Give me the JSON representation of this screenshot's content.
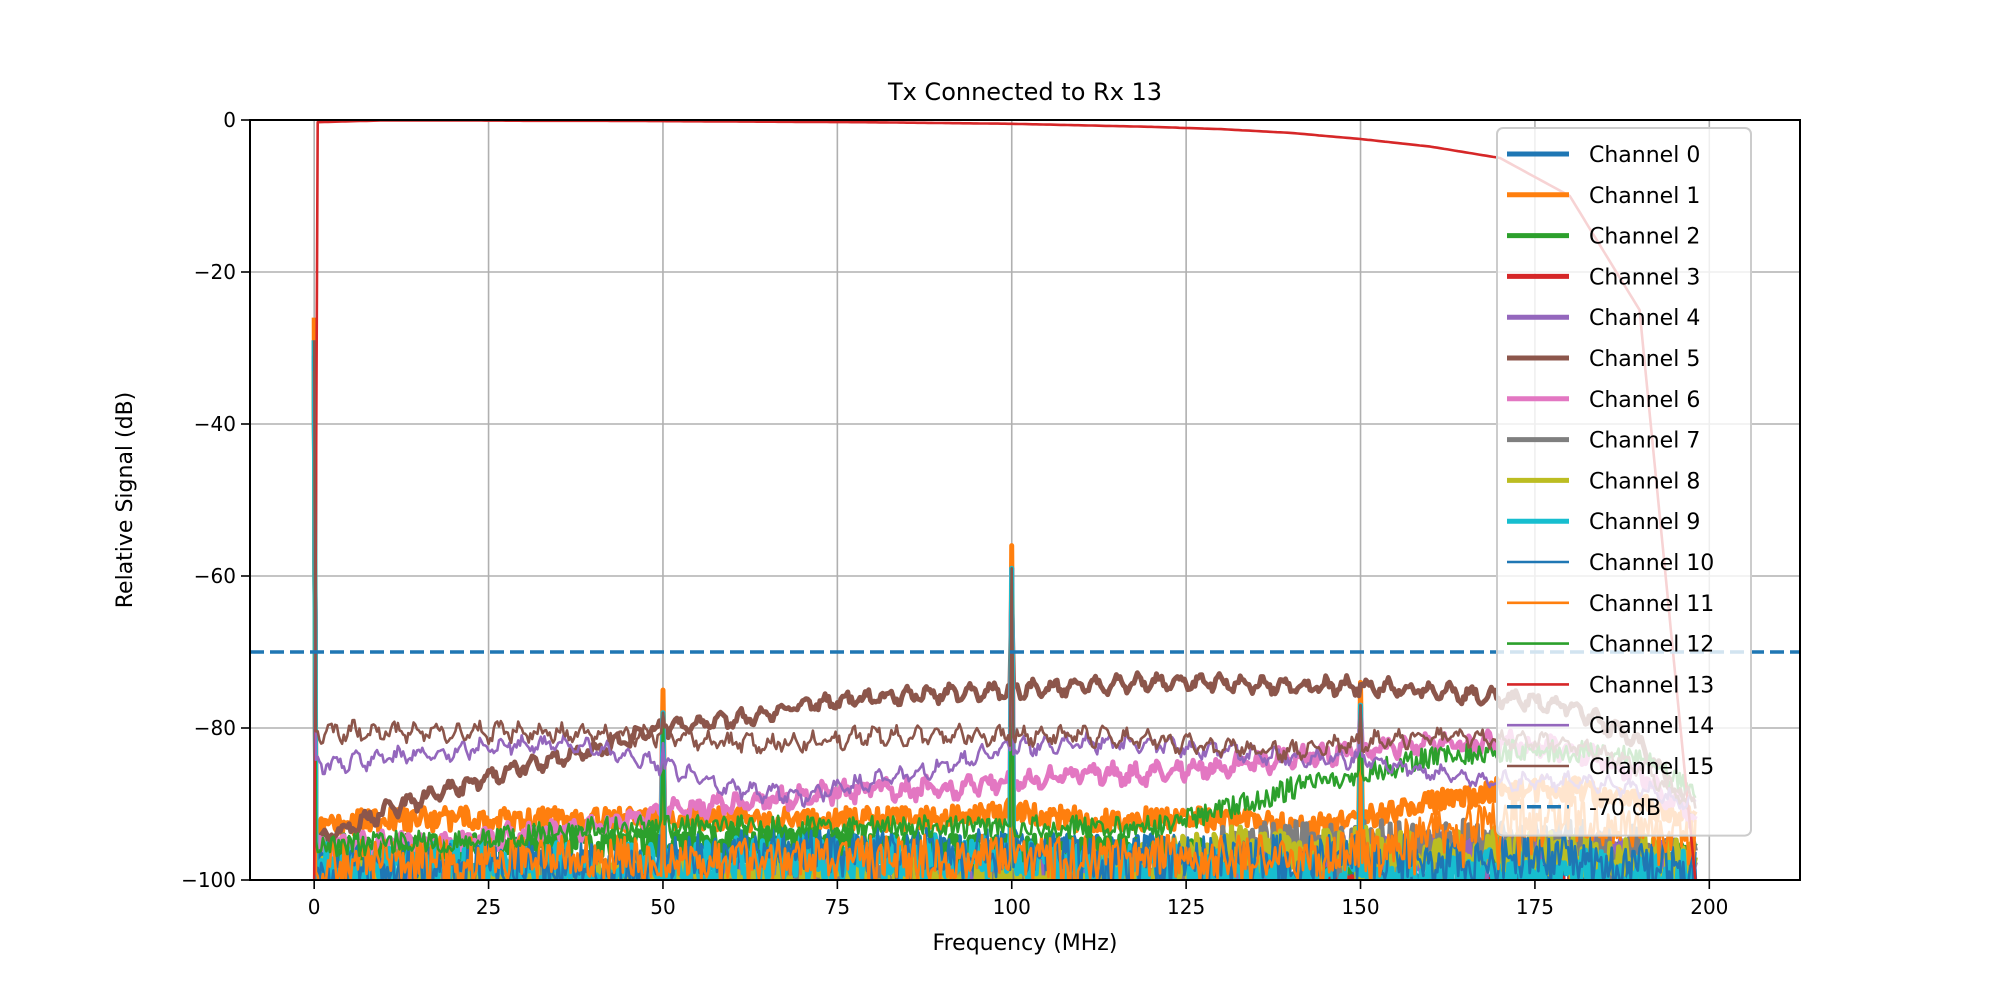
{
  "chart_data": {
    "type": "line",
    "title": "Tx Connected to Rx 13",
    "xlabel": "Frequency (MHz)",
    "ylabel": "Relative Signal (dB)",
    "xlim": [
      -9.2,
      213
    ],
    "ylim": [
      -100,
      0
    ],
    "xticks": [
      0,
      25,
      50,
      75,
      100,
      125,
      150,
      175,
      200
    ],
    "yticks": [
      0,
      -20,
      -40,
      -60,
      -80,
      -100
    ],
    "xtick_labels": [
      "0",
      "25",
      "50",
      "75",
      "100",
      "125",
      "150",
      "175",
      "200"
    ],
    "ytick_labels": [
      "0",
      "−20",
      "−40",
      "−60",
      "−80",
      "−100"
    ],
    "grid": true,
    "legend_position": "upper right",
    "x": [
      0,
      10,
      20,
      30,
      40,
      50,
      60,
      70,
      80,
      90,
      100,
      110,
      120,
      130,
      140,
      150,
      160,
      170,
      180,
      190,
      198
    ],
    "spikes": [
      {
        "x": 0,
        "db": -26
      },
      {
        "x": 50,
        "db": -75
      },
      {
        "x": 100,
        "db": -56
      },
      {
        "x": 150,
        "db": -74
      }
    ],
    "series": [
      {
        "name": "Channel 0",
        "color": "#1f77b4",
        "width": "thick",
        "noise": 3,
        "values": [
          -99,
          -99,
          -99,
          -99,
          -99,
          -99,
          -97,
          -97,
          -97,
          -97,
          -97,
          -97,
          -97,
          -99,
          -99,
          -99,
          -99,
          -99,
          -99,
          -99,
          -99
        ]
      },
      {
        "name": "Channel 1",
        "color": "#ff7f0e",
        "width": "thick",
        "noise": 1.6,
        "values": [
          -93,
          -92,
          -92,
          -92,
          -92,
          -92,
          -92,
          -92,
          -92,
          -92,
          -91,
          -92,
          -92,
          -92,
          -93,
          -92,
          -90,
          -88,
          -88,
          -90,
          -92
        ]
      },
      {
        "name": "Channel 2",
        "color": "#2ca02c",
        "width": "thick",
        "noise": 2,
        "values": [
          -96,
          -96,
          -96,
          -95,
          -95,
          -95,
          -95,
          -95,
          -95,
          -96,
          -96,
          -96,
          -96,
          -97,
          -97,
          -97,
          -97,
          -97,
          -97,
          -97,
          -97
        ]
      },
      {
        "name": "Channel 3",
        "color": "#d62728",
        "width": "thick",
        "noise": 1.5,
        "values": [
          -101,
          -101,
          -101,
          -101,
          -101,
          -101,
          -101,
          -101,
          -101,
          -101,
          -101,
          -101,
          -101,
          -101,
          -101,
          -101,
          -101,
          -101,
          -101,
          -101,
          -101
        ]
      },
      {
        "name": "Channel 4",
        "color": "#9467bd",
        "width": "thick",
        "noise": 2.5,
        "values": [
          -100,
          -100,
          -100,
          -100,
          -100,
          -100,
          -100,
          -100,
          -100,
          -100,
          -100,
          -100,
          -100,
          -99,
          -97,
          -96,
          -96,
          -96,
          -96,
          -97,
          -98
        ]
      },
      {
        "name": "Channel 5",
        "color": "#8c564b",
        "width": "thick",
        "noise": 0.6,
        "values": [
          -95,
          -91,
          -88,
          -85,
          -83,
          -80,
          -79,
          -77,
          -76,
          -75.5,
          -75,
          -74.5,
          -74,
          -74,
          -74.5,
          -74.5,
          -75,
          -76,
          -77,
          -82,
          -92
        ]
      },
      {
        "name": "Channel 6",
        "color": "#e377c2",
        "width": "thick",
        "noise": 1,
        "values": [
          -96,
          -95,
          -95,
          -94,
          -93,
          -91,
          -90,
          -89,
          -88,
          -88,
          -87,
          -86,
          -86,
          -85,
          -84,
          -83,
          -82,
          -82,
          -83,
          -86,
          -92
        ]
      },
      {
        "name": "Channel 7",
        "color": "#7f7f7f",
        "width": "thick",
        "noise": 3,
        "values": [
          -101,
          -101,
          -101,
          -101,
          -101,
          -101,
          -101,
          -101,
          -101,
          -101,
          -101,
          -101,
          -101,
          -96,
          -95,
          -95,
          -95,
          -95,
          -95,
          -96,
          -98
        ]
      },
      {
        "name": "Channel 8",
        "color": "#bcbd22",
        "width": "thick",
        "noise": 3,
        "values": [
          -100,
          -100,
          -100,
          -100,
          -100,
          -100,
          -100,
          -100,
          -100,
          -100,
          -100,
          -99,
          -98,
          -96,
          -96,
          -96,
          -96,
          -96,
          -97,
          -97,
          -98
        ]
      },
      {
        "name": "Channel 9",
        "color": "#17becf",
        "width": "thick",
        "noise": 3,
        "values": [
          -98,
          -98,
          -98,
          -98,
          -98,
          -98,
          -97,
          -97,
          -97,
          -97,
          -97,
          -98,
          -98,
          -99,
          -99,
          -99,
          -99,
          -99,
          -99,
          -99,
          -99
        ]
      },
      {
        "name": "Channel 10",
        "color": "#1f77b4",
        "width": "thin",
        "noise": 3,
        "values": [
          -98,
          -98,
          -98,
          -98,
          -98,
          -97,
          -96,
          -96,
          -96,
          -96,
          -96,
          -97,
          -97,
          -97,
          -97,
          -97,
          -97,
          -97,
          -97,
          -98,
          -98
        ]
      },
      {
        "name": "Channel 11",
        "color": "#ff7f0e",
        "width": "thin",
        "noise": 3,
        "values": [
          -98,
          -97,
          -97,
          -97,
          -97,
          -97,
          -97,
          -97,
          -97,
          -97,
          -97,
          -97,
          -97,
          -97,
          -97,
          -96,
          -94,
          -92,
          -92,
          -93,
          -95
        ]
      },
      {
        "name": "Channel 12",
        "color": "#2ca02c",
        "width": "thin",
        "noise": 1.5,
        "values": [
          -96,
          -95,
          -95,
          -94,
          -93,
          -93,
          -93,
          -93,
          -93,
          -93,
          -93,
          -93,
          -93,
          -91,
          -88,
          -86,
          -84,
          -83,
          -83,
          -84,
          -88
        ]
      },
      {
        "name": "Channel 13",
        "color": "#d62728",
        "width": "thin",
        "noise": 0,
        "values": [
          -0.3,
          -0.05,
          -0.05,
          -0.1,
          -0.1,
          -0.15,
          -0.2,
          -0.25,
          -0.3,
          -0.4,
          -0.5,
          -0.7,
          -0.9,
          -1.2,
          -1.7,
          -2.5,
          -3.5,
          -5,
          -10,
          -25,
          -100
        ]
      },
      {
        "name": "Channel 14",
        "color": "#9467bd",
        "width": "thin",
        "noise": 0.7,
        "values": [
          -85,
          -84,
          -83,
          -82,
          -82.5,
          -85,
          -88,
          -89,
          -87,
          -85,
          -82.5,
          -82,
          -82,
          -83,
          -84,
          -84,
          -86,
          -87,
          -87,
          -88,
          -90
        ]
      },
      {
        "name": "Channel 15",
        "color": "#8c564b",
        "width": "thin",
        "noise": 0.8,
        "values": [
          -80.5,
          -80.5,
          -80.5,
          -80.5,
          -81,
          -81,
          -82,
          -82,
          -81,
          -81,
          -81,
          -81,
          -81.5,
          -82.5,
          -83,
          -82,
          -81,
          -81.5,
          -82,
          -85,
          -90
        ]
      }
    ],
    "threshold": {
      "name": "-70 dB",
      "value": -70,
      "color": "#1f77b4",
      "style": "dashed"
    }
  }
}
